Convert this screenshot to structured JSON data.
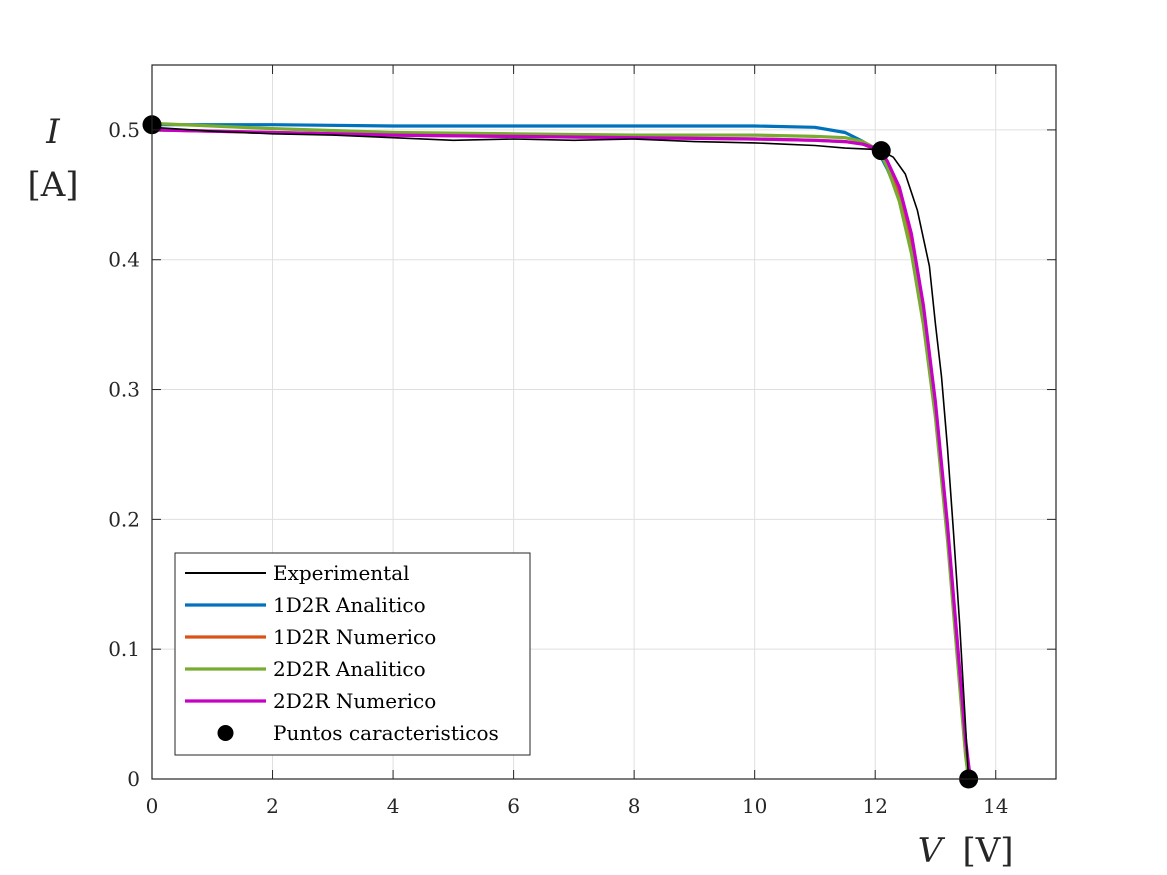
{
  "chart_data": {
    "type": "line",
    "xlabel": {
      "symbol": "V",
      "unit": "[V]"
    },
    "ylabel": {
      "symbol": "I",
      "unit": "[A]"
    },
    "xlim": [
      0,
      15
    ],
    "ylim": [
      0,
      0.55
    ],
    "xticks": [
      0,
      2,
      4,
      6,
      8,
      10,
      12,
      14
    ],
    "yticks": [
      0,
      0.1,
      0.2,
      0.3,
      0.4,
      0.5
    ],
    "xtick_labels": [
      "0",
      "2",
      "4",
      "6",
      "8",
      "10",
      "12",
      "14"
    ],
    "ytick_labels": [
      "0",
      "0.1",
      "0.2",
      "0.3",
      "0.4",
      "0.5"
    ],
    "grid": true,
    "legend_position": "bottom-left",
    "series": [
      {
        "name": "Experimental",
        "color": "#000000",
        "style": "line",
        "x": [
          0,
          1,
          2,
          3,
          4,
          5,
          6,
          7,
          8,
          9,
          10,
          10.5,
          11,
          11.5,
          12.0,
          12.1,
          12.3,
          12.5,
          12.7,
          12.9,
          13.0,
          13.1,
          13.2,
          13.3,
          13.4,
          13.5,
          13.55
        ],
        "y": [
          0.502,
          0.499,
          0.497,
          0.496,
          0.494,
          0.492,
          0.493,
          0.492,
          0.493,
          0.491,
          0.49,
          0.489,
          0.488,
          0.486,
          0.485,
          0.484,
          0.479,
          0.466,
          0.438,
          0.395,
          0.35,
          0.31,
          0.255,
          0.19,
          0.12,
          0.04,
          0.0
        ]
      },
      {
        "name": "1D2R Analitico",
        "color": "#0072BD",
        "style": "line",
        "x": [
          0,
          2,
          4,
          6,
          8,
          10,
          11,
          11.5,
          11.8,
          12.0,
          12.1,
          12.2,
          12.4,
          12.6,
          12.8,
          13.0,
          13.2,
          13.4,
          13.5,
          13.55
        ],
        "y": [
          0.504,
          0.504,
          0.503,
          0.503,
          0.503,
          0.503,
          0.502,
          0.498,
          0.491,
          0.484,
          0.479,
          0.47,
          0.448,
          0.41,
          0.356,
          0.282,
          0.188,
          0.075,
          0.02,
          0.0
        ]
      },
      {
        "name": "1D2R Numerico",
        "color": "#D95319",
        "style": "line",
        "x": [
          0,
          2,
          4,
          6,
          8,
          10,
          11,
          11.5,
          11.8,
          12.0,
          12.1,
          12.2,
          12.4,
          12.6,
          12.8,
          13.0,
          13.2,
          13.4,
          13.5,
          13.55
        ],
        "y": [
          0.5,
          0.498,
          0.496,
          0.495,
          0.494,
          0.493,
          0.492,
          0.491,
          0.489,
          0.485,
          0.482,
          0.474,
          0.452,
          0.414,
          0.358,
          0.284,
          0.19,
          0.078,
          0.022,
          0.0
        ]
      },
      {
        "name": "2D2R Analitico",
        "color": "#77AC30",
        "style": "line",
        "x": [
          0,
          2,
          4,
          6,
          8,
          10,
          11,
          11.5,
          11.8,
          12.0,
          12.1,
          12.2,
          12.4,
          12.6,
          12.8,
          13.0,
          13.2,
          13.4,
          13.5,
          13.55
        ],
        "y": [
          0.505,
          0.501,
          0.498,
          0.497,
          0.496,
          0.496,
          0.495,
          0.494,
          0.491,
          0.486,
          0.481,
          0.471,
          0.445,
          0.405,
          0.35,
          0.278,
          0.184,
          0.072,
          0.018,
          0.0
        ]
      },
      {
        "name": "2D2R Numerico",
        "color": "#C600C6",
        "style": "line",
        "x": [
          0,
          2,
          4,
          6,
          8,
          10,
          11,
          11.5,
          11.8,
          12.0,
          12.1,
          12.2,
          12.4,
          12.6,
          12.8,
          13.0,
          13.2,
          13.4,
          13.5,
          13.58
        ],
        "y": [
          0.5,
          0.498,
          0.496,
          0.495,
          0.494,
          0.493,
          0.492,
          0.491,
          0.489,
          0.486,
          0.483,
          0.476,
          0.456,
          0.42,
          0.365,
          0.29,
          0.196,
          0.085,
          0.03,
          0.0
        ]
      },
      {
        "name": "Puntos caracteristicos",
        "color": "#000000",
        "style": "markers",
        "x": [
          0,
          12.1,
          13.55
        ],
        "y": [
          0.504,
          0.484,
          0.0
        ]
      }
    ]
  }
}
